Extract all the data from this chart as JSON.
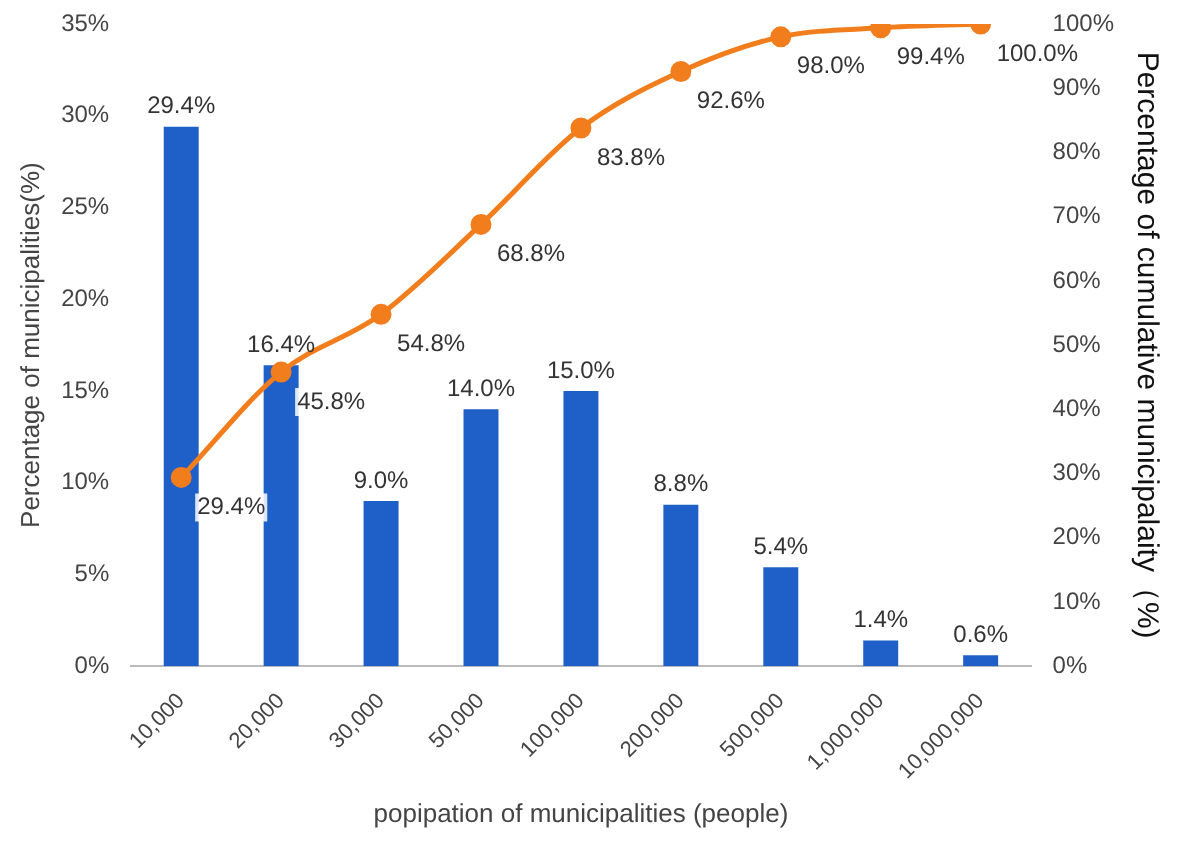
{
  "chart_data": {
    "type": "bar",
    "xlabel": "popipation of municipalities (people)",
    "ylabel": "Percentage of municipalities(%)",
    "y2label": "Percentage of cumulative municipalaity（%)",
    "categories": [
      "10,000",
      "20,000",
      "30,000",
      "50,000",
      "100,000",
      "200,000",
      "500,000",
      "1,000,000",
      "10,000,000"
    ],
    "series": [
      {
        "color": "#1f5fc8",
        "values": [
          29.4,
          16.4,
          9.0,
          14.0,
          15.0,
          8.8,
          5.4,
          1.4,
          0.6
        ],
        "value_labels": [
          "29.4%",
          "16.4%",
          "9.0%",
          "14.0%",
          "15.0%",
          "8.8%",
          "5.4%",
          "1.4%",
          "0.6%"
        ]
      },
      {
        "type": "line",
        "axis": "y2",
        "color": "#f27d1c",
        "marker": "circle",
        "values": [
          29.4,
          45.8,
          54.8,
          68.8,
          83.8,
          92.6,
          98.0,
          99.4,
          100.0
        ],
        "value_labels": [
          "29.4%",
          "45.8%",
          "54.8%",
          "68.8%",
          "83.8%",
          "92.6%",
          "98.0%",
          "99.4%",
          "100.0%"
        ]
      }
    ],
    "ylim": [
      0,
      35
    ],
    "yticks": [
      {
        "value": 0,
        "label": "0%"
      },
      {
        "value": 5,
        "label": "5%"
      },
      {
        "value": 10,
        "label": "10%"
      },
      {
        "value": 15,
        "label": "15%"
      },
      {
        "value": 20,
        "label": "20%"
      },
      {
        "value": 25,
        "label": "25%"
      },
      {
        "value": 30,
        "label": "30%"
      },
      {
        "value": 35,
        "label": "35%"
      }
    ],
    "y2lim": [
      0,
      100
    ],
    "y2ticks": [
      {
        "value": 0,
        "label": "0%"
      },
      {
        "value": 10,
        "label": "10%"
      },
      {
        "value": 20,
        "label": "20%"
      },
      {
        "value": 30,
        "label": "30%"
      },
      {
        "value": 40,
        "label": "40%"
      },
      {
        "value": 50,
        "label": "50%"
      },
      {
        "value": 60,
        "label": "60%"
      },
      {
        "value": 70,
        "label": "70%"
      },
      {
        "value": 80,
        "label": "80%"
      },
      {
        "value": 90,
        "label": "90%"
      },
      {
        "value": 100,
        "label": "100%"
      }
    ],
    "grid": false,
    "legend": false
  }
}
